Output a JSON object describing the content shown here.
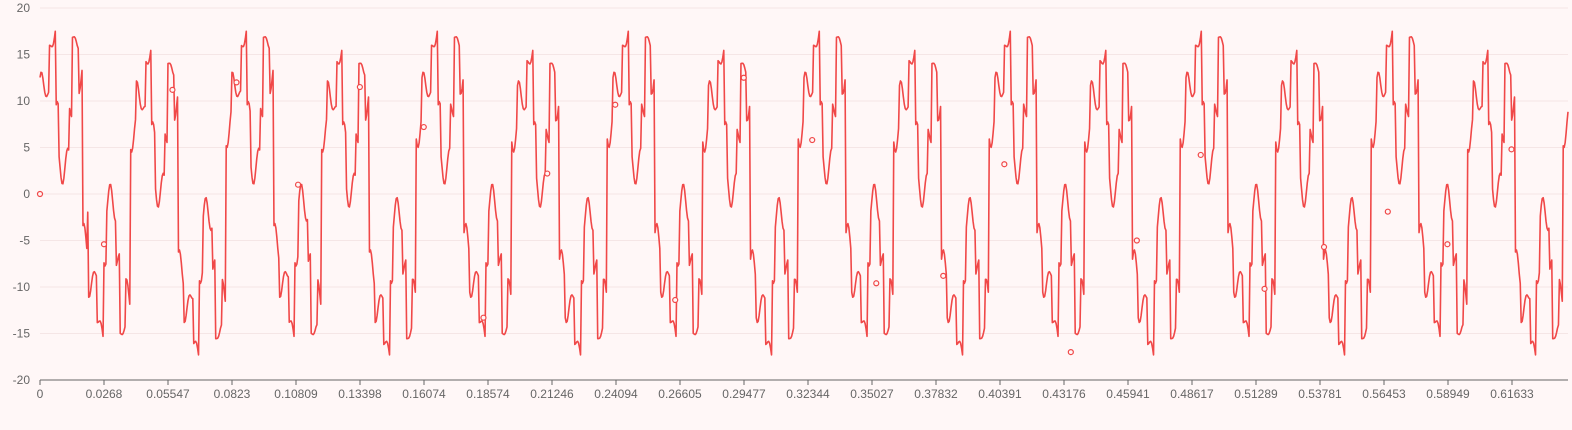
{
  "chart_data": {
    "type": "line",
    "title": "",
    "xlabel": "",
    "ylabel": "",
    "ylim": [
      -20,
      20
    ],
    "xlim": [
      0,
      0.64
    ],
    "y_ticks": [
      -20,
      -15,
      -10,
      -5,
      0,
      5,
      10,
      15,
      20
    ],
    "y_tick_labels": [
      "-20",
      "-15",
      "-10",
      "-5",
      "0",
      "5",
      "10",
      "15",
      "20"
    ],
    "x_tick_labels": [
      "0",
      "0.0268",
      "0.05547",
      "0.0823",
      "0.10809",
      "0.13398",
      "0.16074",
      "0.18574",
      "0.21246",
      "0.24094",
      "0.26605",
      "0.29477",
      "0.32344",
      "0.35027",
      "0.37832",
      "0.40391",
      "0.43176",
      "0.45941",
      "0.48617",
      "0.51289",
      "0.53781",
      "0.56453",
      "0.58949",
      "0.61633"
    ],
    "grid": true,
    "legend": "none",
    "colors": {
      "line": "#f04848",
      "grid": "#f5e6e6",
      "axis": "#666666",
      "background": "#fff7f7"
    },
    "series": [
      {
        "signal": "composite-periodic",
        "fundamental_period": 0.04,
        "sample_step": 0.0004,
        "x_start": 0,
        "x_end": 0.64,
        "range": [
          -17.3,
          17.5
        ],
        "markers": [
          {
            "x": 0,
            "y": 0
          },
          {
            "x": 0.0268,
            "y": -5.4
          },
          {
            "x": 0.05547,
            "y": 11.2
          },
          {
            "x": 0.0823,
            "y": 12.0
          },
          {
            "x": 0.10809,
            "y": 1.0
          },
          {
            "x": 0.13398,
            "y": 11.5
          },
          {
            "x": 0.16074,
            "y": 7.2
          },
          {
            "x": 0.18574,
            "y": -13.3
          },
          {
            "x": 0.21246,
            "y": 2.2
          },
          {
            "x": 0.24094,
            "y": 9.6
          },
          {
            "x": 0.26605,
            "y": -11.4
          },
          {
            "x": 0.29477,
            "y": 12.5
          },
          {
            "x": 0.32344,
            "y": 5.8
          },
          {
            "x": 0.35027,
            "y": -9.6
          },
          {
            "x": 0.37832,
            "y": -8.8
          },
          {
            "x": 0.40391,
            "y": 3.2
          },
          {
            "x": 0.43176,
            "y": -17.0
          },
          {
            "x": 0.45941,
            "y": -5.0
          },
          {
            "x": 0.48617,
            "y": 4.2
          },
          {
            "x": 0.51289,
            "y": -10.2
          },
          {
            "x": 0.53781,
            "y": -5.7
          },
          {
            "x": 0.56453,
            "y": -1.9
          },
          {
            "x": 0.58949,
            "y": -5.4
          },
          {
            "x": 0.61633,
            "y": 4.8
          }
        ]
      }
    ]
  }
}
